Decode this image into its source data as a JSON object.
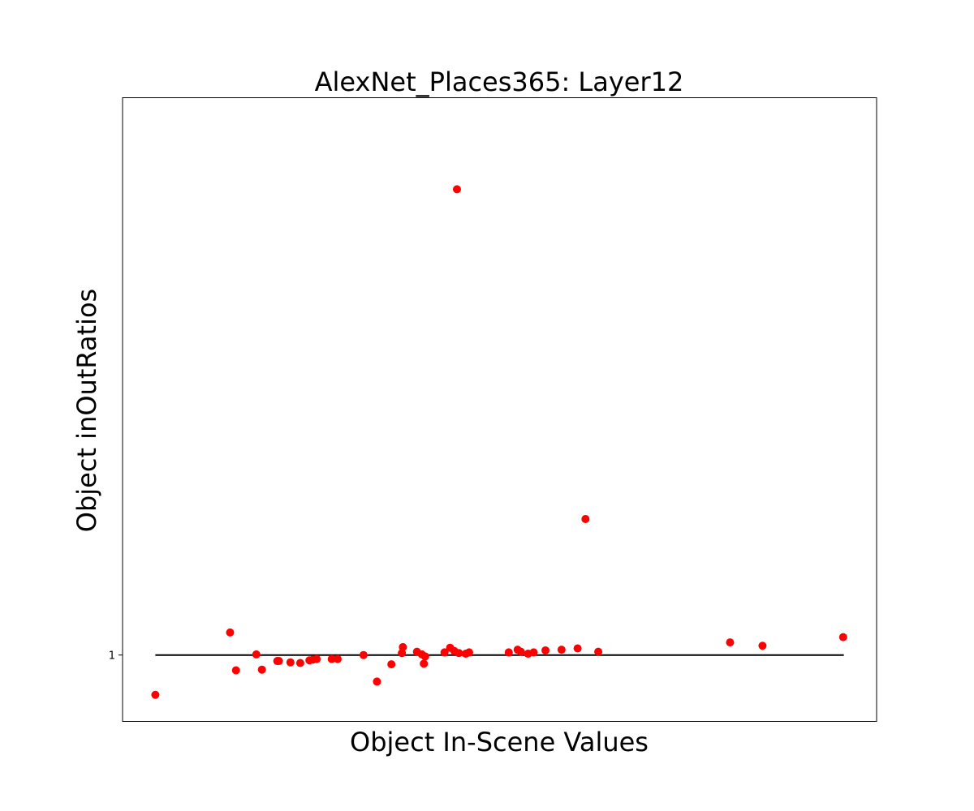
{
  "chart_data": {
    "type": "scatter",
    "title": "AlexNet_Places365: Layer12",
    "xlabel": "Object In-Scene Values",
    "ylabel": "Object inOutRatios",
    "xticks_visible": false,
    "yticks": [
      1
    ],
    "ytick_labels": [
      "1"
    ],
    "xlim": [
      -1,
      22
    ],
    "ylim": [
      0.9,
      1.84
    ],
    "grid": false,
    "reference_line": {
      "y": 1,
      "x": [
        0,
        21
      ],
      "color": "#000000"
    },
    "marker_color": "#ff0000",
    "series": [
      {
        "x": [
          0.0,
          2.28,
          2.46,
          3.08,
          3.25,
          3.72,
          3.77,
          4.12,
          4.42,
          4.7,
          4.8,
          4.92,
          5.38,
          5.56,
          6.35,
          6.76,
          7.2,
          7.52,
          7.55,
          7.98,
          8.13,
          8.19,
          8.23,
          8.82,
          8.99,
          9.12,
          9.2,
          9.26,
          9.47,
          9.57,
          10.78,
          11.05,
          11.15,
          11.37,
          11.54,
          11.9,
          12.39,
          12.88,
          13.12,
          13.51,
          17.53,
          18.52,
          20.98
        ],
        "y": [
          0.94,
          1.034,
          0.977,
          1.001,
          0.978,
          0.991,
          0.991,
          0.989,
          0.988,
          0.992,
          0.993,
          0.994,
          0.994,
          0.994,
          1.0,
          0.96,
          0.986,
          1.003,
          1.012,
          1.005,
          1.001,
          0.987,
          0.998,
          1.004,
          1.011,
          1.006,
          1.702,
          1.003,
          1.002,
          1.004,
          1.004,
          1.008,
          1.005,
          1.002,
          1.004,
          1.007,
          1.008,
          1.01,
          1.205,
          1.005,
          1.019,
          1.014,
          1.027
        ]
      }
    ]
  }
}
